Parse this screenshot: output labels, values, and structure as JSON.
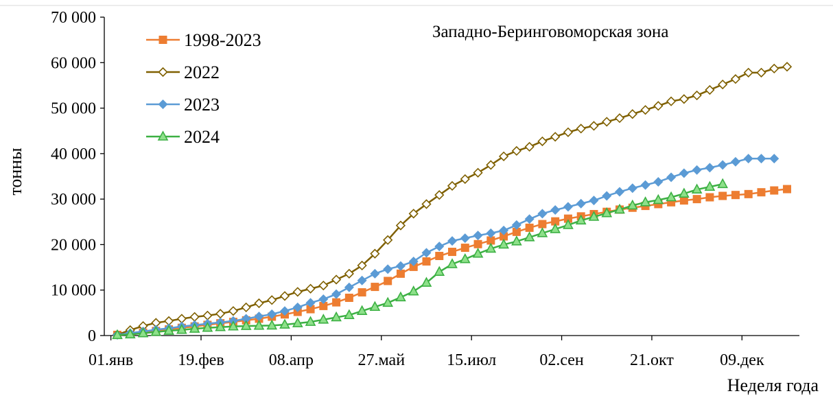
{
  "chart_data": {
    "type": "line",
    "subtitle": "Западно-Беринговоморская зона",
    "xlabel": "Неделя года",
    "ylabel": "тонны",
    "ylim": [
      0,
      70000
    ],
    "yticks": [
      0,
      10000,
      20000,
      30000,
      40000,
      50000,
      60000,
      70000
    ],
    "ytick_labels": [
      "0",
      "10 000",
      "20 000",
      "30 000",
      "40 000",
      "50 000",
      "60 000",
      "70 000"
    ],
    "xlim": [
      1,
      53
    ],
    "xticks": [
      1,
      8,
      15,
      22,
      29,
      36,
      43,
      50
    ],
    "xtick_labels": [
      "01.янв",
      "19.фев",
      "08.апр",
      "27.май",
      "15.июл",
      "02.сен",
      "21.окт",
      "09.дек"
    ],
    "legend_position": "top-left",
    "series": [
      {
        "name": "1998-2023",
        "color": "#ED7D31",
        "marker": "square",
        "x": [
          1,
          2,
          3,
          4,
          5,
          6,
          7,
          8,
          9,
          10,
          11,
          12,
          13,
          14,
          15,
          16,
          17,
          18,
          19,
          20,
          21,
          22,
          23,
          24,
          25,
          26,
          27,
          28,
          29,
          30,
          31,
          32,
          33,
          34,
          35,
          36,
          37,
          38,
          39,
          40,
          41,
          42,
          43,
          44,
          45,
          46,
          47,
          48,
          49,
          50,
          51,
          52,
          53
        ],
        "values": [
          150,
          350,
          650,
          1000,
          1350,
          1700,
          2000,
          2350,
          2700,
          3000,
          3350,
          3700,
          4150,
          4650,
          5200,
          5800,
          6500,
          7300,
          8300,
          9500,
          10700,
          12000,
          13600,
          15100,
          16300,
          17500,
          18400,
          19300,
          20100,
          20900,
          21800,
          22800,
          23700,
          24500,
          25100,
          25700,
          26200,
          26700,
          27200,
          27700,
          28100,
          28500,
          28900,
          29300,
          29700,
          30000,
          30400,
          30700,
          30900,
          31100,
          31500,
          31900,
          32200
        ]
      },
      {
        "name": "2022",
        "color": "#7F6000",
        "marker": "diamond-open",
        "x": [
          1,
          2,
          3,
          4,
          5,
          6,
          7,
          8,
          9,
          10,
          11,
          12,
          13,
          14,
          15,
          16,
          17,
          18,
          19,
          20,
          21,
          22,
          23,
          24,
          25,
          26,
          27,
          28,
          29,
          30,
          31,
          32,
          33,
          34,
          35,
          36,
          37,
          38,
          39,
          40,
          41,
          42,
          43,
          44,
          45,
          46,
          47,
          48,
          49,
          50,
          51,
          52,
          53
        ],
        "values": [
          200,
          1200,
          2100,
          2800,
          3200,
          3700,
          4100,
          4400,
          4800,
          5400,
          6200,
          7100,
          7800,
          8700,
          9600,
          10300,
          11000,
          12300,
          13600,
          15400,
          18000,
          21000,
          24200,
          26800,
          28900,
          30900,
          32900,
          34400,
          35800,
          37500,
          39400,
          40600,
          41500,
          42700,
          43700,
          44700,
          45500,
          46100,
          47000,
          47800,
          48700,
          49600,
          50500,
          51500,
          52000,
          52800,
          54000,
          55200,
          56400,
          57800,
          57800,
          58700,
          59100
        ]
      },
      {
        "name": "2023",
        "color": "#5B9BD5",
        "marker": "diamond",
        "x": [
          1,
          2,
          3,
          4,
          5,
          6,
          7,
          8,
          9,
          10,
          11,
          12,
          13,
          14,
          15,
          16,
          17,
          18,
          19,
          20,
          21,
          22,
          23,
          24,
          25,
          26,
          27,
          28,
          29,
          30,
          31,
          32,
          33,
          34,
          35,
          36,
          37,
          38,
          39,
          40,
          41,
          42,
          43,
          44,
          45,
          46,
          47,
          48,
          49,
          50,
          51,
          52
        ],
        "values": [
          150,
          550,
          900,
          1300,
          1600,
          2000,
          2300,
          2600,
          2900,
          3200,
          3700,
          4200,
          4700,
          5400,
          6200,
          7200,
          8000,
          9100,
          10600,
          12100,
          13600,
          14600,
          15300,
          16300,
          18200,
          19600,
          20800,
          21400,
          22000,
          22500,
          23100,
          24300,
          25600,
          26800,
          27600,
          28300,
          29000,
          29700,
          30700,
          31600,
          32400,
          33100,
          33800,
          34800,
          35700,
          36400,
          36900,
          37500,
          38200,
          38900,
          38900,
          38900
        ]
      },
      {
        "name": "2024",
        "color": "#3CB043",
        "marker": "triangle",
        "x": [
          1,
          2,
          3,
          4,
          5,
          6,
          7,
          8,
          9,
          10,
          11,
          12,
          13,
          14,
          15,
          16,
          17,
          18,
          19,
          20,
          21,
          22,
          23,
          24,
          25,
          26,
          27,
          28,
          29,
          30,
          31,
          32,
          33,
          34,
          35,
          36,
          37,
          38,
          39,
          40,
          41,
          42,
          43,
          44,
          45,
          46,
          47,
          48
        ],
        "values": [
          100,
          250,
          500,
          800,
          1050,
          1250,
          1500,
          1700,
          1850,
          2000,
          2100,
          2150,
          2200,
          2400,
          2700,
          3000,
          3500,
          4000,
          4500,
          5400,
          6300,
          7200,
          8400,
          9700,
          11600,
          14000,
          15700,
          16800,
          18000,
          19100,
          20000,
          20700,
          21600,
          22500,
          23400,
          24300,
          25300,
          26100,
          26900,
          27700,
          28600,
          29300,
          29800,
          30400,
          31200,
          32100,
          32700,
          33300
        ]
      }
    ]
  }
}
